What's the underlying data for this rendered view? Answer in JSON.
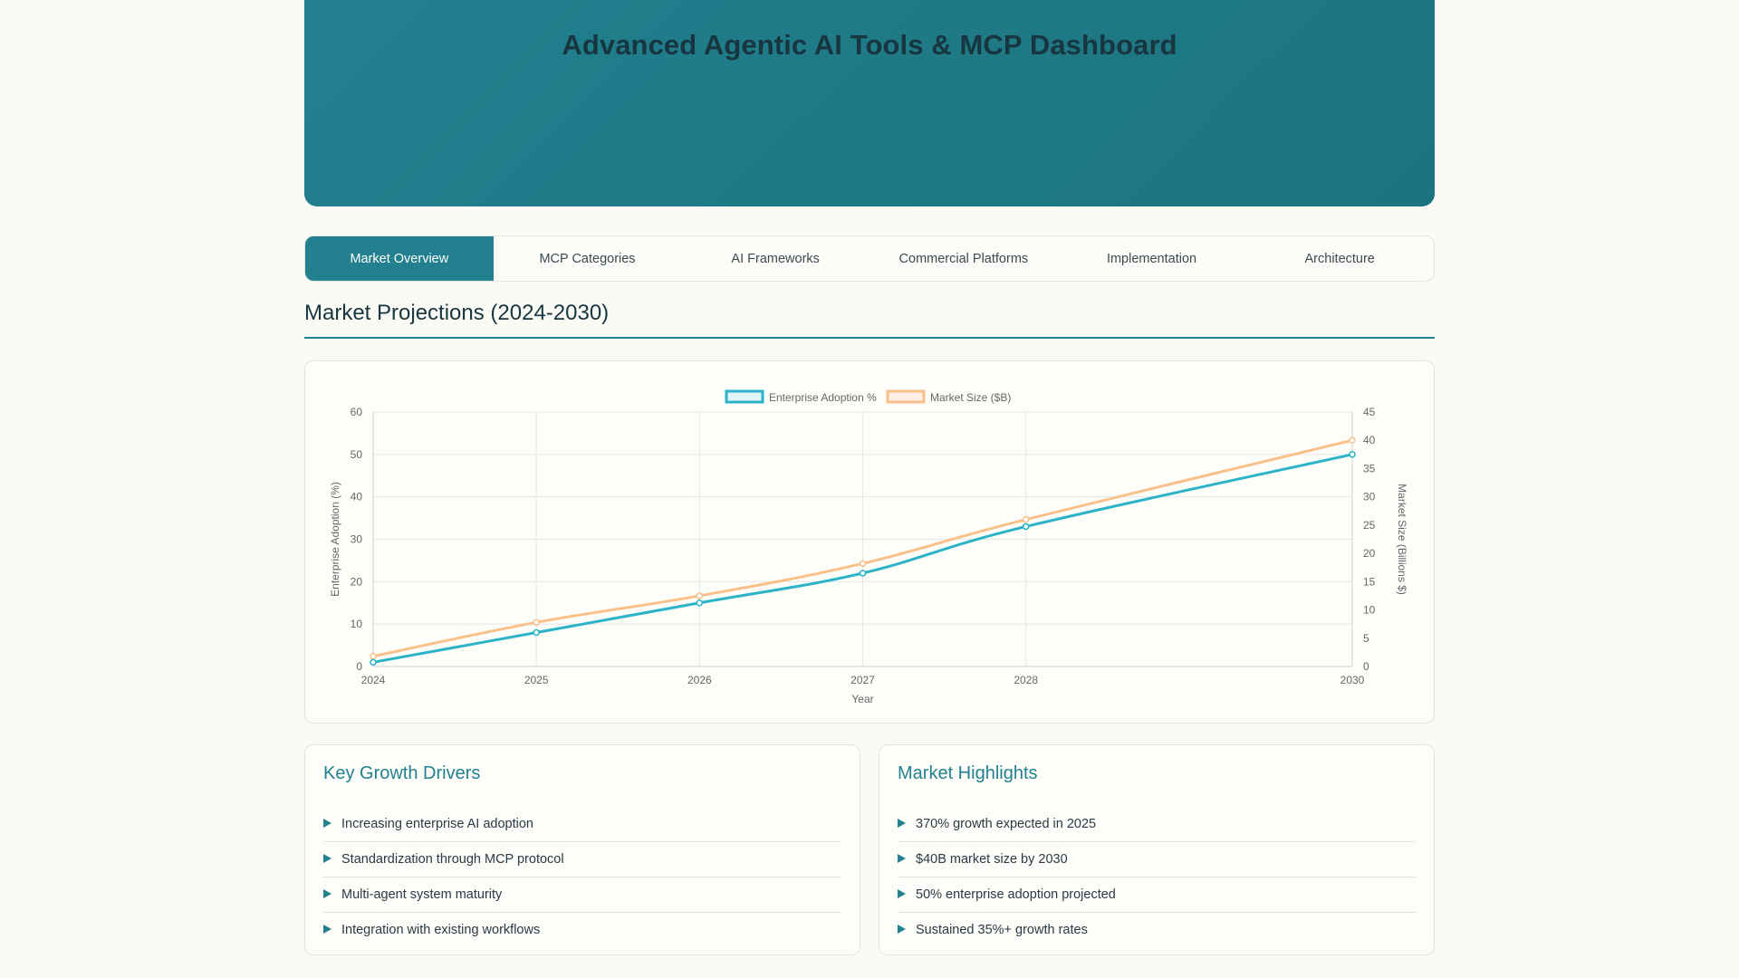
{
  "header": {
    "title": "Advanced Agentic AI Tools & MCP Dashboard"
  },
  "tabs": [
    {
      "label": "Market Overview",
      "active": true
    },
    {
      "label": "MCP Categories",
      "active": false
    },
    {
      "label": "AI Frameworks",
      "active": false
    },
    {
      "label": "Commercial Platforms",
      "active": false
    },
    {
      "label": "Implementation",
      "active": false
    },
    {
      "label": "Architecture",
      "active": false
    }
  ],
  "section": {
    "title": "Market Projections (2024-2030)"
  },
  "chart_data": {
    "type": "line",
    "x": [
      2024,
      2025,
      2026,
      2027,
      2028,
      2030
    ],
    "xlabel": "Year",
    "xlim": [
      2024,
      2030
    ],
    "x_ticks": [
      "2024",
      "2025",
      "2026",
      "2027",
      "2028",
      "2030"
    ],
    "series": [
      {
        "name": "Enterprise Adoption %",
        "axis": "left",
        "color": "#2bb3c7",
        "values": [
          1,
          8,
          15,
          22,
          33,
          50
        ]
      },
      {
        "name": "Market Size ($B)",
        "axis": "right",
        "color": "#f9c08a",
        "values": [
          1.8,
          7.8,
          12.5,
          18.2,
          26,
          40
        ]
      }
    ],
    "y_left": {
      "label": "Enterprise Adoption (%)",
      "min": 0,
      "max": 60,
      "ticks": [
        "0",
        "10",
        "20",
        "30",
        "40",
        "50",
        "60"
      ]
    },
    "y_right": {
      "label": "Market Size (Billions $)",
      "min": 0,
      "max": 45,
      "ticks": [
        "0",
        "5",
        "10",
        "15",
        "20",
        "25",
        "30",
        "35",
        "40",
        "45"
      ]
    },
    "legend": "top-center",
    "grid": true
  },
  "drivers": {
    "title": "Key Growth Drivers",
    "items": [
      "Increasing enterprise AI adoption",
      "Standardization through MCP protocol",
      "Multi-agent system maturity",
      "Integration with existing workflows"
    ]
  },
  "highlights": {
    "title": "Market Highlights",
    "items": [
      "370% growth expected in 2025",
      "$40B market size by 2030",
      "50% enterprise adoption projected",
      "Sustained 35%+ growth rates"
    ]
  }
}
